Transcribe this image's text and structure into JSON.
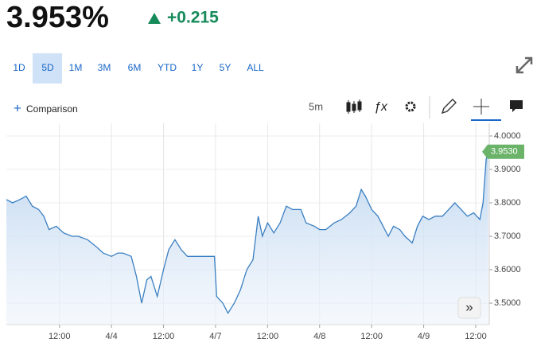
{
  "header": {
    "price": "3.953%",
    "change": "+0.215"
  },
  "range_buttons": [
    "1D",
    "5D",
    "1M",
    "3M",
    "6M",
    "YTD",
    "1Y",
    "5Y",
    "ALL"
  ],
  "selected_range": 1,
  "toolbar": {
    "comparison": "Comparison",
    "interval": "5m"
  },
  "chart_data": {
    "type": "line",
    "color": "#3a7fc1",
    "grid": true,
    "x": [
      -0.01,
      0.05,
      0.12,
      0.18,
      0.24,
      0.3,
      0.35,
      0.4,
      0.47,
      0.54,
      0.62,
      0.68,
      0.77,
      0.85,
      0.92,
      1.0,
      1.06,
      1.11,
      1.19,
      1.24,
      1.29,
      1.34,
      1.38,
      1.44,
      1.5,
      1.55,
      1.61,
      1.67,
      1.73,
      1.84,
      1.99,
      2.01,
      2.07,
      2.12,
      2.18,
      2.24,
      2.3,
      2.36,
      2.41,
      2.45,
      2.5,
      2.56,
      2.62,
      2.68,
      2.74,
      2.82,
      2.87,
      2.95,
      3.0,
      3.06,
      3.14,
      3.21,
      3.29,
      3.35,
      3.4,
      3.44,
      3.5,
      3.56,
      3.61,
      3.66,
      3.71,
      3.77,
      3.82,
      3.89,
      3.94,
      3.99,
      4.05,
      4.11,
      4.18,
      4.24,
      4.3,
      4.36,
      4.42,
      4.48,
      4.54,
      4.57,
      4.6,
      4.62
    ],
    "values": [
      3.81,
      3.8,
      3.81,
      3.82,
      3.79,
      3.78,
      3.76,
      3.72,
      3.73,
      3.71,
      3.7,
      3.7,
      3.69,
      3.67,
      3.65,
      3.64,
      3.65,
      3.65,
      3.64,
      3.58,
      3.5,
      3.57,
      3.58,
      3.52,
      3.6,
      3.66,
      3.69,
      3.66,
      3.64,
      3.64,
      3.64,
      3.52,
      3.5,
      3.47,
      3.5,
      3.54,
      3.6,
      3.63,
      3.76,
      3.7,
      3.74,
      3.71,
      3.74,
      3.79,
      3.78,
      3.78,
      3.74,
      3.73,
      3.72,
      3.72,
      3.74,
      3.75,
      3.77,
      3.79,
      3.84,
      3.82,
      3.78,
      3.76,
      3.73,
      3.7,
      3.73,
      3.72,
      3.7,
      3.68,
      3.73,
      3.76,
      3.75,
      3.76,
      3.76,
      3.78,
      3.8,
      3.78,
      3.76,
      3.77,
      3.75,
      3.8,
      3.93,
      3.953
    ],
    "xlim": [
      -0.01,
      4.63
    ],
    "xticks": [
      {
        "value": 0.5,
        "label": "12:00"
      },
      {
        "value": 1,
        "label": "4/4"
      },
      {
        "value": 1.5,
        "label": "12:00"
      },
      {
        "value": 2,
        "label": "4/7"
      },
      {
        "value": 2.5,
        "label": "12:00"
      },
      {
        "value": 3,
        "label": "4/8"
      },
      {
        "value": 3.5,
        "label": "12:00"
      },
      {
        "value": 4,
        "label": "4/9"
      },
      {
        "value": 4.5,
        "label": "12:00"
      }
    ],
    "ylim": [
      3.436,
      4.038
    ],
    "yticks": [
      {
        "value": 3.5,
        "label": "3.5000"
      },
      {
        "value": 3.6,
        "label": "3.6000"
      },
      {
        "value": 3.7,
        "label": "3.7000"
      },
      {
        "value": 3.8,
        "label": "3.8000"
      },
      {
        "value": 3.9,
        "label": "3.9000"
      },
      {
        "value": 4.0,
        "label": "4.0000"
      }
    ],
    "last_price": {
      "value": 3.953,
      "label": "3.9530"
    }
  }
}
